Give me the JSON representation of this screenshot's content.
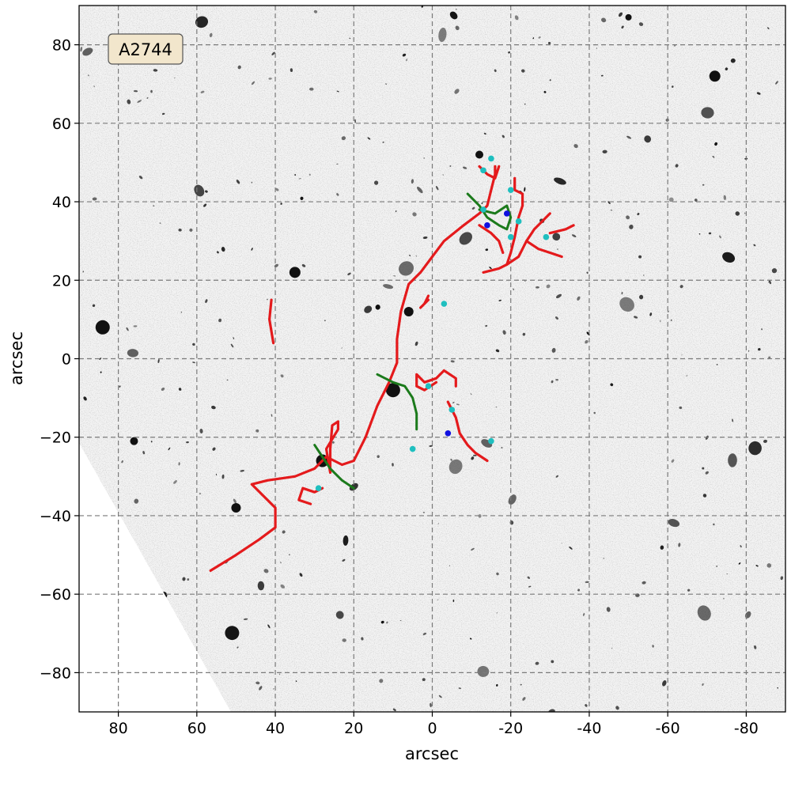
{
  "chart_data": {
    "type": "scatter",
    "title": "",
    "annotation": "A2744",
    "xlabel": "arcsec",
    "ylabel": "arcsec",
    "xlim": [
      90,
      -90
    ],
    "ylim": [
      -90,
      90
    ],
    "x_ticks": [
      80,
      60,
      40,
      20,
      0,
      -20,
      -40,
      -60,
      -80
    ],
    "x_tick_labels": [
      "80",
      "60",
      "40",
      "20",
      "0",
      "-20",
      "-40",
      "-60",
      "-80"
    ],
    "y_ticks": [
      80,
      60,
      40,
      20,
      0,
      -20,
      -40,
      -60,
      -80
    ],
    "y_tick_labels": [
      "80",
      "60",
      "40",
      "20",
      "0",
      "−20",
      "−40",
      "−60",
      "−80"
    ],
    "grid": true,
    "colors": {
      "critical": "#e41a1c",
      "caustic": "#1b7a1b",
      "cyan": "#1fbfbf",
      "blue": "#1010e0"
    },
    "critical_curves": [
      [
        [
          56.5,
          -54
        ],
        [
          50,
          -50
        ],
        [
          44,
          -46
        ],
        [
          40,
          -43
        ],
        [
          40,
          -38
        ],
        [
          43,
          -35
        ],
        [
          46,
          -32
        ],
        [
          42,
          -31
        ],
        [
          35,
          -30
        ],
        [
          30,
          -28
        ],
        [
          27,
          -25
        ],
        [
          23,
          -27
        ],
        [
          20,
          -26
        ],
        [
          17,
          -20
        ],
        [
          14,
          -12
        ],
        [
          11,
          -6
        ],
        [
          9,
          -1
        ],
        [
          9,
          5
        ],
        [
          8,
          12
        ],
        [
          6,
          19
        ],
        [
          3,
          22
        ],
        [
          0,
          26
        ],
        [
          -3,
          30
        ],
        [
          -8,
          34
        ],
        [
          -12,
          37
        ],
        [
          -14,
          39
        ],
        [
          -15,
          43
        ],
        [
          -16,
          47
        ],
        [
          -16,
          49
        ]
      ],
      [
        [
          41,
          15
        ],
        [
          41.5,
          10
        ],
        [
          40.5,
          4
        ]
      ],
      [
        [
          26,
          -29
        ],
        [
          27,
          -23
        ],
        [
          24,
          -18
        ],
        [
          24,
          -16
        ],
        [
          25.5,
          -17
        ],
        [
          26,
          -23
        ],
        [
          26,
          -29
        ]
      ],
      [
        [
          31,
          -37
        ],
        [
          34,
          -36
        ],
        [
          33,
          -33
        ],
        [
          30,
          -34
        ],
        [
          28,
          -33
        ]
      ],
      [
        [
          -1,
          -6
        ],
        [
          2,
          -8
        ],
        [
          4,
          -7
        ],
        [
          4,
          -4
        ],
        [
          2,
          -6
        ],
        [
          -1,
          -5
        ],
        [
          -3,
          -3
        ],
        [
          -6,
          -5
        ],
        [
          -6,
          -7
        ]
      ],
      [
        [
          -4,
          -11
        ],
        [
          -6,
          -15
        ],
        [
          -7,
          -19
        ],
        [
          -9,
          -22
        ],
        [
          -11,
          -24
        ],
        [
          -14,
          -26
        ]
      ],
      [
        [
          1,
          16
        ],
        [
          2,
          14
        ],
        [
          3,
          13
        ],
        [
          1,
          15
        ]
      ],
      [
        [
          -12,
          34
        ],
        [
          -15,
          32
        ],
        [
          -17,
          30
        ],
        [
          -18,
          27
        ]
      ],
      [
        [
          -19,
          24
        ],
        [
          -20,
          27
        ],
        [
          -21,
          31
        ],
        [
          -22,
          36
        ],
        [
          -23,
          39
        ],
        [
          -23,
          42
        ],
        [
          -21,
          43
        ],
        [
          -21,
          46
        ]
      ],
      [
        [
          -13,
          22
        ],
        [
          -17,
          23
        ],
        [
          -19,
          24
        ],
        [
          -22,
          26
        ],
        [
          -24,
          30
        ],
        [
          -26,
          33
        ],
        [
          -28,
          35
        ],
        [
          -30,
          37
        ]
      ],
      [
        [
          -24,
          30
        ],
        [
          -27,
          28
        ],
        [
          -30,
          27
        ],
        [
          -33,
          26
        ]
      ],
      [
        [
          -30,
          32
        ],
        [
          -34,
          33
        ],
        [
          -36,
          34
        ]
      ],
      [
        [
          -12,
          49
        ],
        [
          -14,
          47
        ],
        [
          -16,
          46
        ],
        [
          -17,
          49
        ]
      ]
    ],
    "caustics": [
      [
        [
          30,
          -22
        ],
        [
          28,
          -25
        ],
        [
          26,
          -28
        ],
        [
          23,
          -31
        ],
        [
          20,
          -33
        ]
      ],
      [
        [
          14,
          -4
        ],
        [
          10,
          -6
        ],
        [
          7,
          -7
        ],
        [
          5,
          -10
        ],
        [
          4,
          -14
        ],
        [
          4,
          -18
        ]
      ],
      [
        [
          -9,
          42
        ],
        [
          -12,
          39
        ],
        [
          -14,
          36
        ],
        [
          -17,
          34
        ],
        [
          -19,
          33
        ],
        [
          -20,
          36
        ],
        [
          -19,
          39
        ],
        [
          -16,
          37
        ],
        [
          -12,
          38
        ]
      ]
    ],
    "cyan_points": [
      [
        29,
        -33
      ],
      [
        5,
        -23
      ],
      [
        -13,
        48
      ],
      [
        -15,
        51
      ],
      [
        -20,
        43
      ],
      [
        -22,
        35
      ],
      [
        -13,
        38
      ],
      [
        -20,
        31
      ],
      [
        -29,
        31
      ],
      [
        -3,
        14
      ],
      [
        1,
        -7
      ],
      [
        -5,
        -13
      ],
      [
        -15,
        -21
      ]
    ],
    "blue_points": [
      [
        -19,
        37
      ],
      [
        -14,
        34
      ],
      [
        -4,
        -19
      ]
    ]
  }
}
